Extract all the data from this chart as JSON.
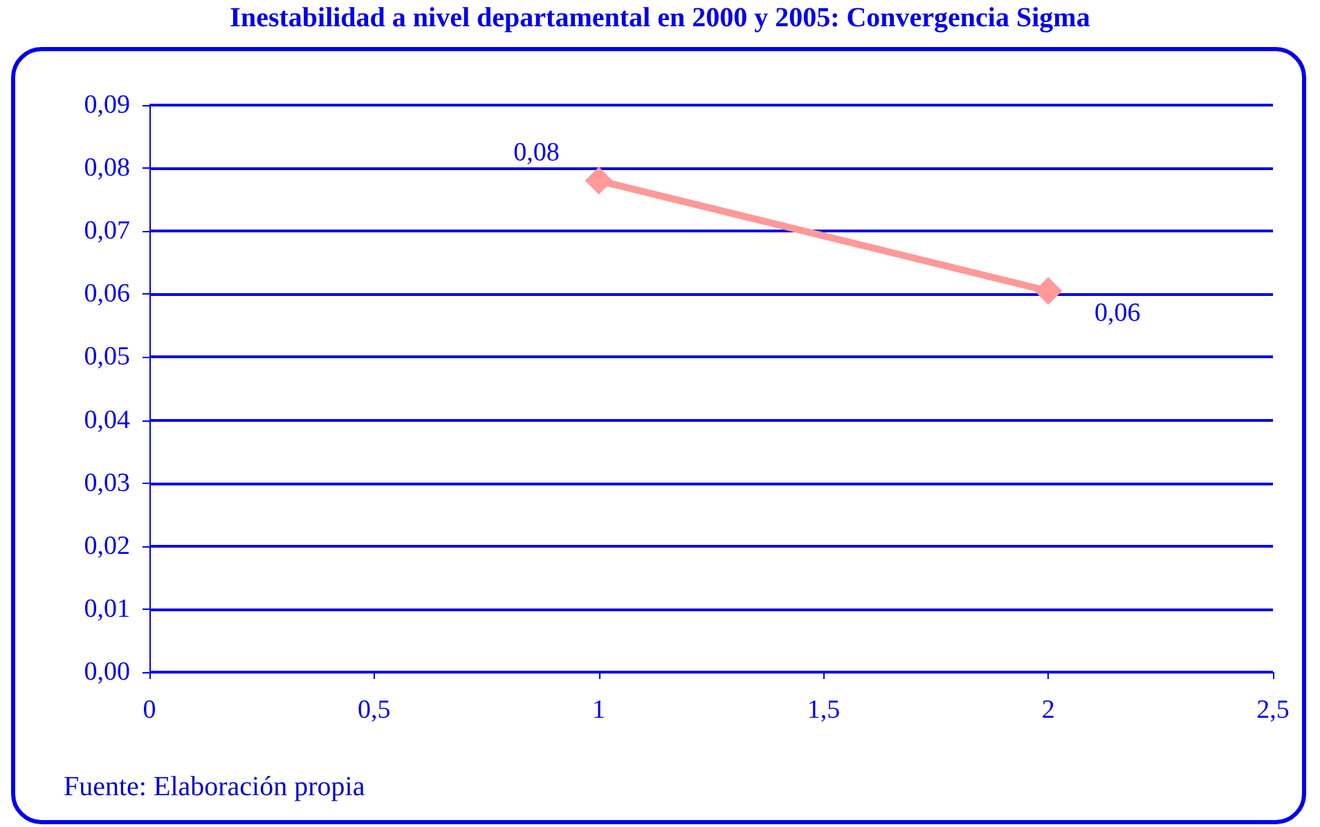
{
  "chart_data": {
    "type": "line",
    "title": "Inestabilidad a nivel departamental en 2000 y 2005: Convergencia Sigma",
    "x": [
      1,
      2
    ],
    "series": [
      {
        "color": "#ff9999",
        "values": [
          0.078,
          0.0605
        ],
        "value_labels": [
          "0,08",
          "0,06"
        ]
      }
    ],
    "xlim": [
      0,
      2.5
    ],
    "xticks": [
      {
        "value": 0,
        "label": "0"
      },
      {
        "value": 0.5,
        "label": "0,5"
      },
      {
        "value": 1,
        "label": "1"
      },
      {
        "value": 1.5,
        "label": "1,5"
      },
      {
        "value": 2,
        "label": "2"
      },
      {
        "value": 2.5,
        "label": "2,5"
      }
    ],
    "ylim": [
      0,
      0.09
    ],
    "yticks": [
      {
        "value": 0,
        "label": "0,00"
      },
      {
        "value": 0.01,
        "label": "0,01"
      },
      {
        "value": 0.02,
        "label": "0,02"
      },
      {
        "value": 0.03,
        "label": "0,03"
      },
      {
        "value": 0.04,
        "label": "0,04"
      },
      {
        "value": 0.05,
        "label": "0,05"
      },
      {
        "value": 0.06,
        "label": "0,06"
      },
      {
        "value": 0.07,
        "label": "0,07"
      },
      {
        "value": 0.08,
        "label": "0,08"
      },
      {
        "value": 0.09,
        "label": "0,09"
      }
    ],
    "grid": "y",
    "marker": "diamond",
    "line_style": "solid",
    "annotations": [
      "Fuente: Elaboración propia"
    ]
  }
}
